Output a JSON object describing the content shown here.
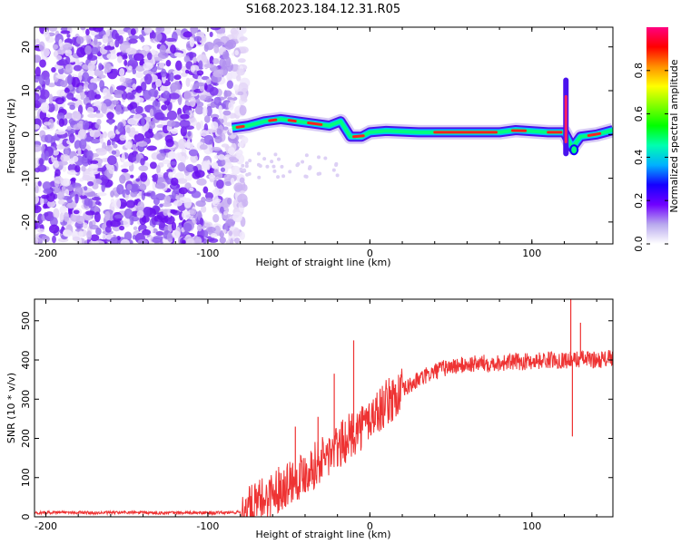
{
  "title": "S168.2023.184.12.31.R05",
  "chart_data": [
    {
      "type": "heatmap",
      "xlabel": "Height of straight line (km)",
      "ylabel": "Frequency (Hz)",
      "xlim": [
        -207,
        150
      ],
      "ylim": [
        -25,
        24.5
      ],
      "x_ticks": [
        -200,
        -100,
        0,
        100
      ],
      "y_ticks": [
        -20,
        -10,
        0,
        10,
        20
      ],
      "colorbar": {
        "label": "Normalized spectral amplitude",
        "range": [
          0,
          1
        ],
        "ticks": [
          0.0,
          0.2,
          0.4,
          0.6,
          0.8
        ],
        "colormap": [
          "#ffffff",
          "#b8a8ee",
          "#7000ff",
          "#1500ff",
          "#00b0ff",
          "#00ffb0",
          "#00ff00",
          "#80ff00",
          "#ffff00",
          "#ff9000",
          "#ff0000",
          "#ff0080"
        ]
      },
      "ridge": {
        "description_points": [
          {
            "x": -85,
            "freq": 1.5
          },
          {
            "x": -75,
            "freq": 2.0
          },
          {
            "x": -65,
            "freq": 3.0
          },
          {
            "x": -55,
            "freq": 3.5
          },
          {
            "x": -45,
            "freq": 3.0
          },
          {
            "x": -35,
            "freq": 2.5
          },
          {
            "x": -25,
            "freq": 2.0
          },
          {
            "x": -18,
            "freq": 3.0
          },
          {
            "x": -12,
            "freq": -0.5
          },
          {
            "x": -5,
            "freq": -0.5
          },
          {
            "x": 0,
            "freq": 0.5
          },
          {
            "x": 10,
            "freq": 0.8
          },
          {
            "x": 30,
            "freq": 0.5
          },
          {
            "x": 60,
            "freq": 0.5
          },
          {
            "x": 80,
            "freq": 0.5
          },
          {
            "x": 90,
            "freq": 1.0
          },
          {
            "x": 110,
            "freq": 0.5
          },
          {
            "x": 120,
            "freq": 0.5
          },
          {
            "x": 125,
            "freq": -3.0
          },
          {
            "x": 130,
            "freq": -0.5
          },
          {
            "x": 140,
            "freq": 0.0
          },
          {
            "x": 150,
            "freq": 1.0
          }
        ]
      }
    },
    {
      "type": "line",
      "xlabel": "Height of straight line (km)",
      "ylabel": "SNR (10 * v/v)",
      "xlim": [
        -207,
        150
      ],
      "ylim": [
        0,
        555
      ],
      "x_ticks": [
        -200,
        -100,
        0,
        100
      ],
      "y_ticks": [
        0,
        100,
        200,
        300,
        400,
        500
      ],
      "color": "#ee3333",
      "series": [
        {
          "x": [
            -207,
            -190,
            -170,
            -150,
            -130,
            -110,
            -90,
            -80,
            -75,
            -70,
            -65,
            -60,
            -55,
            -50,
            -45,
            -40,
            -35,
            -30,
            -25,
            -20,
            -15,
            -10,
            -5,
            0,
            5,
            10,
            15,
            20,
            25,
            30,
            35,
            40,
            45,
            50,
            60,
            70,
            80,
            90,
            100,
            110,
            120,
            125,
            130,
            140,
            150
          ],
          "values": [
            10,
            12,
            10,
            11,
            10,
            10,
            10,
            12,
            18,
            30,
            45,
            60,
            75,
            90,
            100,
            115,
            130,
            145,
            160,
            175,
            195,
            215,
            230,
            250,
            270,
            290,
            305,
            320,
            335,
            350,
            360,
            370,
            378,
            383,
            388,
            392,
            393,
            395,
            397,
            400,
            400,
            400,
            403,
            400,
            405
          ]
        }
      ],
      "spikes": [
        {
          "x": -46,
          "value": 230
        },
        {
          "x": -32,
          "value": 255
        },
        {
          "x": -22,
          "value": 365
        },
        {
          "x": -10,
          "value": 450
        },
        {
          "x": 124,
          "value": 555
        },
        {
          "x": 125,
          "value": 205
        },
        {
          "x": 130,
          "value": 495
        }
      ]
    }
  ]
}
